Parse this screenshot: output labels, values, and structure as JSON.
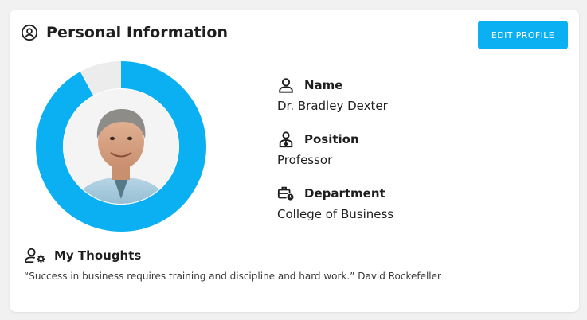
{
  "header": {
    "title": "Personal Information",
    "icon": "user-circle-icon"
  },
  "edit_button": {
    "label": "EDIT PROFILE",
    "color": "#0bb0f3"
  },
  "avatar": {
    "alt": "Profile photo",
    "ring_progress": 0.92,
    "ring_color": "#0bb0f3",
    "ring_track_color": "#ececec"
  },
  "fields": [
    {
      "icon": "user-icon",
      "label": "Name",
      "value": "Dr. Bradley Dexter"
    },
    {
      "icon": "id-badge-icon",
      "label": "Position",
      "value": "Professor"
    },
    {
      "icon": "briefcase-clock-icon",
      "label": "Department",
      "value": "College of Business"
    }
  ],
  "thoughts": {
    "icon": "user-gear-icon",
    "label": "My Thoughts",
    "quote": "“Success in business requires training and discipline and hard work.” David Rockefeller"
  }
}
